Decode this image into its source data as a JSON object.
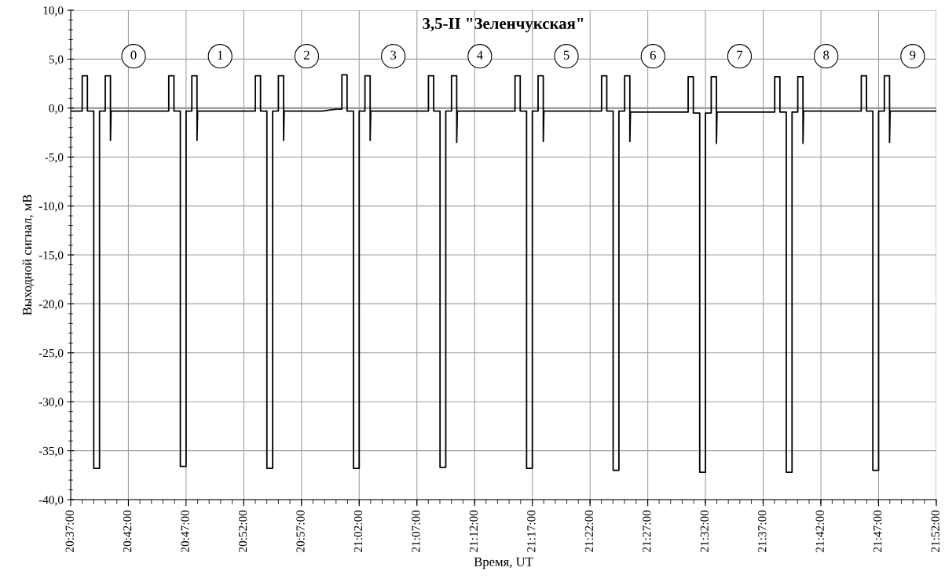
{
  "chart_data": {
    "type": "line",
    "title": "3,5-II \"Зеленчукская\"",
    "xlabel": "Время, UT",
    "ylabel": "Выходной сигнал, мВ",
    "x": [
      20.6175,
      20.6333,
      20.6333,
      20.6408,
      20.6408,
      20.65,
      20.65,
      20.6583,
      20.6583,
      20.6666,
      20.6666,
      20.6741,
      20.6741,
      20.675,
      20.7583,
      20.7583,
      20.7658,
      20.7658,
      20.775,
      20.775,
      20.7833,
      20.7833,
      20.7916,
      20.7916,
      20.7991,
      20.7991,
      20.8,
      20.8833,
      20.8833,
      20.8908,
      20.8908,
      20.9,
      20.9,
      20.9083,
      20.9083,
      20.9166,
      20.9166,
      20.9241,
      20.9241,
      20.925,
      20.98,
      21.0,
      21.0083,
      21.0083,
      21.0158,
      21.0158,
      21.025,
      21.025,
      21.0333,
      21.0333,
      21.0416,
      21.0416,
      21.0491,
      21.0491,
      21.05,
      21.1333,
      21.1333,
      21.1408,
      21.1408,
      21.15,
      21.15,
      21.1583,
      21.1583,
      21.1666,
      21.1666,
      21.1741,
      21.1741,
      21.175,
      21.2583,
      21.2583,
      21.2658,
      21.2658,
      21.275,
      21.275,
      21.2833,
      21.2833,
      21.2916,
      21.2916,
      21.2991,
      21.2991,
      21.3,
      21.3833,
      21.3833,
      21.3908,
      21.3908,
      21.4,
      21.4,
      21.4083,
      21.4083,
      21.4166,
      21.4166,
      21.4241,
      21.4241,
      21.425,
      21.5083,
      21.5083,
      21.5158,
      21.5158,
      21.525,
      21.525,
      21.5333,
      21.5333,
      21.5416,
      21.5416,
      21.5491,
      21.5491,
      21.55,
      21.6333,
      21.6333,
      21.6408,
      21.6408,
      21.65,
      21.65,
      21.6583,
      21.6583,
      21.6666,
      21.6666,
      21.6741,
      21.6741,
      21.675,
      21.7583,
      21.7583,
      21.7658,
      21.7658,
      21.775,
      21.775,
      21.7833,
      21.7833,
      21.7916,
      21.7916,
      21.7991,
      21.7991,
      21.8,
      21.8667
    ],
    "series": [
      {
        "color": "#000000",
        "values": [
          -0.3,
          -0.3,
          3.3,
          3.3,
          -0.3,
          -0.3,
          -36.8,
          -36.8,
          -0.3,
          -0.3,
          3.3,
          3.3,
          -3.3,
          -0.3,
          -0.3,
          3.3,
          3.3,
          -0.3,
          -0.3,
          -36.6,
          -36.6,
          -0.3,
          -0.3,
          3.3,
          3.3,
          -3.3,
          -0.3,
          -0.3,
          3.3,
          3.3,
          -0.3,
          -0.3,
          -36.8,
          -36.8,
          -0.3,
          -0.3,
          3.3,
          3.3,
          -3.3,
          -0.3,
          -0.3,
          -0.1,
          -0.1,
          3.4,
          3.4,
          -0.3,
          -0.3,
          -36.8,
          -36.8,
          -0.3,
          -0.3,
          3.3,
          3.3,
          -3.3,
          -0.3,
          -0.3,
          3.3,
          3.3,
          -0.3,
          -0.3,
          -36.7,
          -36.7,
          -0.3,
          -0.3,
          3.3,
          3.3,
          -3.5,
          -0.3,
          -0.3,
          3.3,
          3.3,
          -0.3,
          -0.3,
          -36.8,
          -36.8,
          -0.3,
          -0.3,
          3.3,
          3.3,
          -3.4,
          -0.3,
          -0.3,
          3.3,
          3.3,
          -0.3,
          -0.3,
          -37.0,
          -37.0,
          -0.3,
          -0.3,
          3.3,
          3.3,
          -3.4,
          -0.4,
          -0.4,
          3.2,
          3.2,
          -0.5,
          -0.5,
          -37.2,
          -37.2,
          -0.5,
          -0.5,
          3.2,
          3.2,
          -3.6,
          -0.4,
          -0.4,
          3.2,
          3.2,
          -0.4,
          -0.4,
          -37.2,
          -37.2,
          -0.4,
          -0.4,
          3.2,
          3.2,
          -3.6,
          -0.3,
          -0.3,
          3.3,
          3.3,
          -0.3,
          -0.3,
          -37.0,
          -37.0,
          -0.3,
          -0.3,
          3.3,
          3.3,
          -3.5,
          -0.3,
          -0.3
        ]
      }
    ],
    "xlim": [
      20.6167,
      21.8667
    ],
    "xticks": [
      {
        "value": 20.6167,
        "label": "20:37:00"
      },
      {
        "value": 20.7,
        "label": "20:42:00"
      },
      {
        "value": 20.7833,
        "label": "20:47:00"
      },
      {
        "value": 20.8667,
        "label": "20:52:00"
      },
      {
        "value": 20.95,
        "label": "20:57:00"
      },
      {
        "value": 21.0333,
        "label": "21:02:00"
      },
      {
        "value": 21.1167,
        "label": "21:07:00"
      },
      {
        "value": 21.2,
        "label": "21:12:00"
      },
      {
        "value": 21.2833,
        "label": "21:17:00"
      },
      {
        "value": 21.3667,
        "label": "21:22:00"
      },
      {
        "value": 21.45,
        "label": "21:27:00"
      },
      {
        "value": 21.5333,
        "label": "21:32:00"
      },
      {
        "value": 21.6167,
        "label": "21:37:00"
      },
      {
        "value": 21.7,
        "label": "21:42:00"
      },
      {
        "value": 21.7833,
        "label": "21:47:00"
      },
      {
        "value": 21.8667,
        "label": "21:52:00"
      }
    ],
    "ylim": [
      -40,
      10
    ],
    "yticks": [
      {
        "value": -40,
        "label": "-40,0"
      },
      {
        "value": -35,
        "label": "-35,0"
      },
      {
        "value": -30,
        "label": "-30,0"
      },
      {
        "value": -25,
        "label": "-25,0"
      },
      {
        "value": -20,
        "label": "-20,0"
      },
      {
        "value": -15,
        "label": "-15,0"
      },
      {
        "value": -10,
        "label": "-10,0"
      },
      {
        "value": -5,
        "label": "-5,0"
      },
      {
        "value": 0,
        "label": "0,0"
      },
      {
        "value": 5,
        "label": "5,0"
      },
      {
        "value": 10,
        "label": "10,0"
      }
    ],
    "annotations": [
      {
        "text": "0",
        "x": 20.7075,
        "y": 5.3
      },
      {
        "text": "1",
        "x": 20.8325,
        "y": 5.3
      },
      {
        "text": "2",
        "x": 20.9575,
        "y": 5.3
      },
      {
        "text": "3",
        "x": 21.0825,
        "y": 5.3
      },
      {
        "text": "4",
        "x": 21.2075,
        "y": 5.3
      },
      {
        "text": "5",
        "x": 21.3325,
        "y": 5.3
      },
      {
        "text": "6",
        "x": 21.4575,
        "y": 5.3
      },
      {
        "text": "7",
        "x": 21.5825,
        "y": 5.3
      },
      {
        "text": "8",
        "x": 21.7075,
        "y": 5.3
      },
      {
        "text": "9",
        "x": 21.8325,
        "y": 5.3
      }
    ],
    "grid": true,
    "marker": "none",
    "line_style": "solid",
    "legend": false
  }
}
